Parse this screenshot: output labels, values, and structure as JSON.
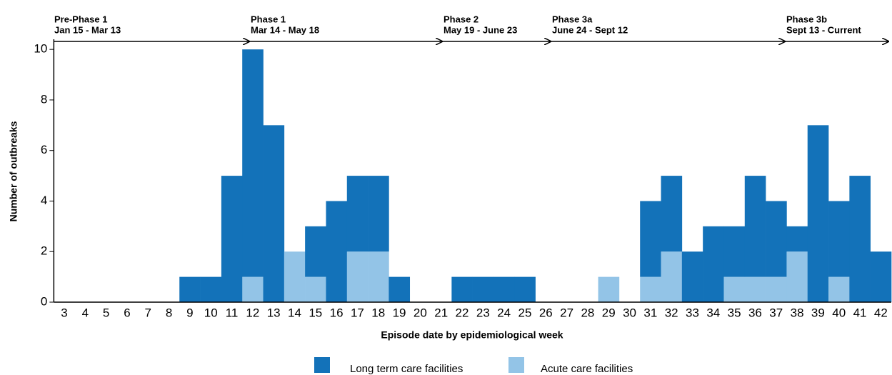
{
  "chart_data": {
    "type": "bar",
    "stacked": true,
    "x_label": "Episode date by epidemiological week",
    "y_label": "Number of outbreaks",
    "categories": [
      "3",
      "4",
      "5",
      "6",
      "7",
      "8",
      "9",
      "10",
      "11",
      "12",
      "13",
      "14",
      "15",
      "16",
      "17",
      "18",
      "19",
      "20",
      "21",
      "22",
      "23",
      "24",
      "25",
      "26",
      "27",
      "28",
      "29",
      "30",
      "31",
      "32",
      "33",
      "34",
      "35",
      "36",
      "37",
      "38",
      "39",
      "40",
      "41",
      "42"
    ],
    "series": [
      {
        "name": "Long term care facilities",
        "color": "#1372b9",
        "values": [
          0,
          0,
          0,
          0,
          0,
          0,
          1,
          1,
          5,
          9,
          7,
          0,
          2,
          4,
          3,
          3,
          1,
          0,
          0,
          1,
          1,
          1,
          1,
          0,
          0,
          0,
          0,
          0,
          3,
          3,
          2,
          3,
          2,
          4,
          3,
          1,
          7,
          3,
          5,
          2
        ]
      },
      {
        "name": "Acute care facilities",
        "color": "#93c4e7",
        "values": [
          0,
          0,
          0,
          0,
          0,
          0,
          0,
          0,
          0,
          1,
          0,
          2,
          1,
          0,
          2,
          2,
          0,
          0,
          0,
          0,
          0,
          0,
          0,
          0,
          0,
          0,
          1,
          0,
          1,
          2,
          0,
          0,
          1,
          1,
          1,
          2,
          0,
          1,
          0,
          0
        ]
      }
    ],
    "ylim": [
      0,
      10.4
    ],
    "yticks": [
      0,
      2,
      4,
      6,
      8,
      10
    ],
    "annotations": [
      {
        "label": "Pre-Phase 1",
        "dates": "Jan 15 - Mar 13"
      },
      {
        "label": "Phase 1",
        "dates": "Mar 14 - May 18"
      },
      {
        "label": "Phase 2",
        "dates": "May 19 - June 23"
      },
      {
        "label": "Phase 3a",
        "dates": "June 24 - Sept 12"
      },
      {
        "label": "Phase 3b",
        "dates": "Sept 13 - Current"
      }
    ]
  }
}
